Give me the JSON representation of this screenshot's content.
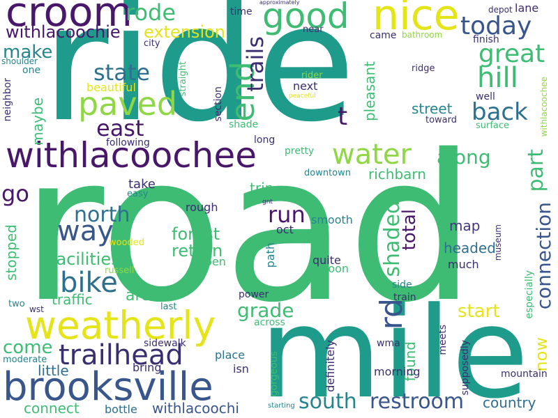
{
  "palette": {
    "yellow": "#e4e419",
    "lime": "#8fd744",
    "green": "#3fbc73",
    "teal": "#1e9b8a",
    "cyan": "#25858e",
    "blue": "#2d708e",
    "indigo": "#39568c",
    "violet": "#453781",
    "purple": "#481769",
    "navy": "#3b2e70"
  },
  "words": {
    "ride": "ride",
    "road": "road",
    "mile": "mile",
    "croom": "croom",
    "nice": "nice",
    "withlacoochee": "withlacoochee",
    "brooksville": "brooksville",
    "weatherly": "weatherly",
    "good": "good",
    "paved": "paved",
    "trailhead": "trailhead",
    "water": "water",
    "end": "end",
    "rode": "rode",
    "today": "today",
    "great": "great",
    "hill": "hill",
    "state": "state",
    "east": "east",
    "make": "make",
    "extension": "extension",
    "withlacoochie": "withlacoochie",
    "trails": "trails",
    "back": "back",
    "along": "along",
    "part": "part",
    "way": "way",
    "bike": "bike",
    "north": "north",
    "run": "run",
    "go": "go",
    "t": "t",
    "rd": "rd",
    "south": "south",
    "restroom": "restroom",
    "connection": "connection",
    "start": "start",
    "grade": "grade",
    "shaded": "shaded",
    "total": "total",
    "forest": "forest",
    "return": "return",
    "facilities": "facilities",
    "traffic": "traffic",
    "area": "area",
    "come": "come",
    "little": "little",
    "connect": "connect",
    "withlacoochi": "withlacoochi",
    "country": "country",
    "now": "now",
    "found": "found",
    "maybe": "maybe",
    "stopped": "stopped",
    "richbarn": "richbarn",
    "pleasant": "pleasant",
    "street": "street",
    "map": "map",
    "headed": "headed",
    "trip": "trip",
    "take": "take",
    "rough": "rough",
    "smooth": "smooth",
    "oct": "oct",
    "path": "path",
    "quite": "quite",
    "soon": "soon",
    "much": "much",
    "open": "open",
    "place": "place",
    "isn": "isn",
    "bring": "bring",
    "sidewalk": "sidewalk",
    "bottle": "bottle",
    "gorgeous": "gorgeous",
    "definitely": "definitely",
    "morning": "morning",
    "wma": "wma",
    "meets": "meets",
    "supposedly": "supposedly",
    "mountain": "mountain",
    "especially": "especially",
    "museum": "museum",
    "side": "side",
    "train": "train",
    "across": "across",
    "power": "power",
    "last": "last",
    "wst": "wst",
    "two": "two",
    "moderate": "moderate",
    "starting": "starting",
    "russell": "russell",
    "wooded": "wooded",
    "gnt": "gnt",
    "easy": "easy",
    "downtown": "downtown",
    "pretty": "pretty",
    "long": "long",
    "following": "following",
    "shade": "shade",
    "section": "section",
    "straight": "straight",
    "beautiful": "beautiful",
    "neighbor": "neighbor",
    "one": "one",
    "shoulder": "shoulder",
    "city": "city",
    "time": "time",
    "near": "near",
    "came": "came",
    "bathroom": "bathroom",
    "finish": "finish",
    "depot": "depot",
    "lane": "lane",
    "approximately": "approximately",
    "rider": "rider",
    "peaceful": "peaceful",
    "ridge": "ridge",
    "well": "well",
    "toward": "toward",
    "surface": "surface",
    "withlacoochee_small": "withlacoochee",
    "next": "next"
  }
}
